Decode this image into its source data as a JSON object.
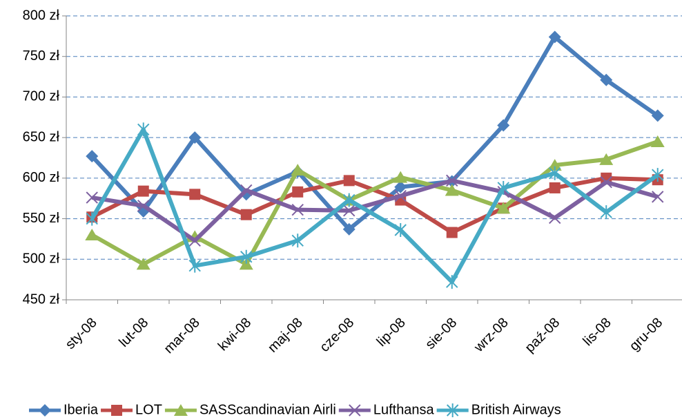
{
  "chart_data": {
    "type": "line",
    "categories": [
      "sty-08",
      "lut-08",
      "mar-08",
      "kwi-08",
      "maj-08",
      "cze-08",
      "lip-08",
      "sie-08",
      "wrz-08",
      "paź-08",
      "lis-08",
      "gru-08"
    ],
    "ylim": [
      450,
      800
    ],
    "yticks": [
      {
        "value": 450,
        "label": "450 zł"
      },
      {
        "value": 500,
        "label": "500 zł"
      },
      {
        "value": 550,
        "label": "550 zł"
      },
      {
        "value": 600,
        "label": "600 zł"
      },
      {
        "value": 650,
        "label": "650 zł"
      },
      {
        "value": 700,
        "label": "700 zł"
      },
      {
        "value": 750,
        "label": "750 zł"
      },
      {
        "value": 800,
        "label": "800 zł"
      }
    ],
    "grid": true,
    "legend": "bottom",
    "series": [
      {
        "name": "Iberia",
        "color": "#4a7ebb",
        "marker": "diamond",
        "values": [
          627,
          559,
          650,
          580,
          608,
          537,
          589,
          596,
          665,
          774,
          721,
          677
        ]
      },
      {
        "name": "LOT",
        "color": "#be4b48",
        "marker": "square",
        "values": [
          552,
          584,
          580,
          555,
          583,
          597,
          573,
          533,
          563,
          588,
          600,
          598
        ]
      },
      {
        "name": "SASScandinavian Airli",
        "color": "#98b954",
        "marker": "triangle",
        "values": [
          530,
          494,
          528,
          494,
          610,
          573,
          601,
          585,
          563,
          616,
          623,
          645
        ]
      },
      {
        "name": "Lufthansa",
        "color": "#7d60a0",
        "marker": "x",
        "values": [
          576,
          566,
          523,
          585,
          561,
          560,
          578,
          597,
          583,
          551,
          595,
          577
        ]
      },
      {
        "name": "British Airways",
        "color": "#46aac5",
        "marker": "star",
        "values": [
          550,
          660,
          492,
          503,
          523,
          573,
          536,
          472,
          588,
          606,
          558,
          604
        ]
      }
    ]
  }
}
